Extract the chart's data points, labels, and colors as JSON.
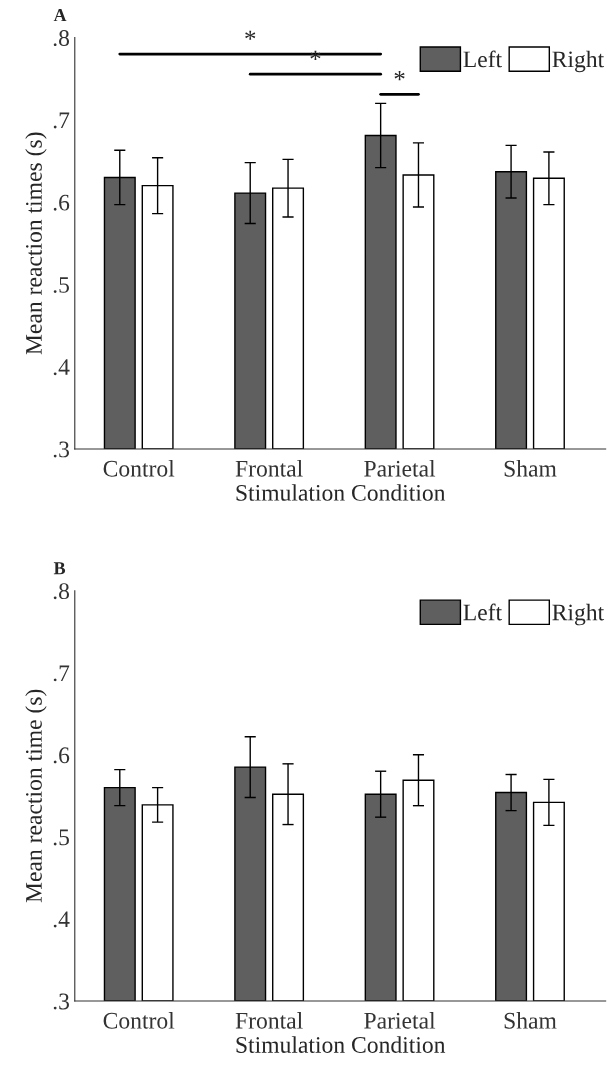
{
  "chart_data": [
    {
      "type": "bar",
      "title": "A",
      "xlabel": "Stimulation Condition",
      "ylabel": "Mean reaction times (s)",
      "categories": [
        "Control",
        "Frontal",
        "Parietal",
        "Sham"
      ],
      "series": [
        {
          "name": "Left",
          "color": "#5f5f5f",
          "values": [
            0.63,
            0.611,
            0.681,
            0.637
          ],
          "errors": [
            0.033,
            0.037,
            0.039,
            0.032
          ]
        },
        {
          "name": "Right",
          "color": "#ffffff",
          "values": [
            0.62,
            0.617,
            0.633,
            0.629
          ],
          "errors": [
            0.034,
            0.035,
            0.039,
            0.032
          ]
        }
      ],
      "ylim": [
        0.3,
        0.8
      ],
      "yticks": [
        {
          "value": 0.3,
          "label": ".3"
        },
        {
          "value": 0.4,
          "label": ".4"
        },
        {
          "value": 0.5,
          "label": ".5"
        },
        {
          "value": 0.6,
          "label": ".6"
        },
        {
          "value": 0.7,
          "label": ".7"
        },
        {
          "value": 0.8,
          "label": ".8"
        }
      ],
      "legend": "top right",
      "grid": false,
      "annotations": [
        "*",
        "*",
        "*"
      ]
    },
    {
      "type": "bar",
      "title": "B",
      "xlabel": "Stimulation Condition",
      "ylabel": "Mean reaction time (s)",
      "categories": [
        "Control",
        "Frontal",
        "Parietal",
        "Sham"
      ],
      "series": [
        {
          "name": "Left",
          "color": "#5f5f5f",
          "values": [
            0.56,
            0.585,
            0.552,
            0.554
          ],
          "errors": [
            0.022,
            0.037,
            0.028,
            0.022
          ]
        },
        {
          "name": "Right",
          "color": "#ffffff",
          "values": [
            0.539,
            0.552,
            0.569,
            0.542
          ],
          "errors": [
            0.021,
            0.037,
            0.031,
            0.028
          ]
        }
      ],
      "ylim": [
        0.3,
        0.8
      ],
      "yticks": [
        {
          "value": 0.3,
          "label": ".3"
        },
        {
          "value": 0.4,
          "label": ".4"
        },
        {
          "value": 0.5,
          "label": ".5"
        },
        {
          "value": 0.6,
          "label": ".6"
        },
        {
          "value": 0.7,
          "label": ".7"
        },
        {
          "value": 0.8,
          "label": ".8"
        }
      ],
      "legend": "top right",
      "grid": false
    }
  ]
}
